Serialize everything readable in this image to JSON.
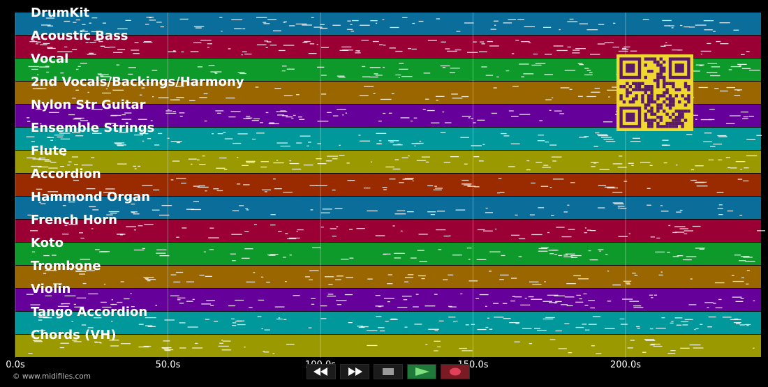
{
  "tracks": [
    {
      "name": "DrumKit",
      "color": "#0b6e9a"
    },
    {
      "name": "Acoustic Bass",
      "color": "#9a0033"
    },
    {
      "name": "Vocal",
      "color": "#0e9a2a"
    },
    {
      "name": "2nd Vocals/Backings/Harmony",
      "color": "#9a6600"
    },
    {
      "name": "Nylon Str Guitar",
      "color": "#66009a"
    },
    {
      "name": "Ensemble Strings",
      "color": "#00989a"
    },
    {
      "name": "Flute",
      "color": "#9a9a00"
    },
    {
      "name": "Accordion",
      "color": "#9a2a00"
    },
    {
      "name": "Hammond Organ",
      "color": "#0b6e9a"
    },
    {
      "name": "French Horn",
      "color": "#9a0033"
    },
    {
      "name": "Koto",
      "color": "#0e9a2a"
    },
    {
      "name": "Trombone",
      "color": "#9a6600"
    },
    {
      "name": "Violin",
      "color": "#66009a"
    },
    {
      "name": "Tango Accordion",
      "color": "#00989a"
    },
    {
      "name": "Chords (VH)",
      "color": "#9a9a00"
    }
  ],
  "timeline": {
    "ticks": [
      {
        "value": 0,
        "label": "0.0s"
      },
      {
        "value": 50,
        "label": "50.0s"
      },
      {
        "value": 100,
        "label": "100.0s"
      },
      {
        "value": 150,
        "label": "150.0s"
      },
      {
        "value": 200,
        "label": "200.0s"
      }
    ],
    "max_seconds": 245
  },
  "transport": {
    "rewind_icon": "rewind-icon",
    "fast_forward_icon": "fast-forward-icon",
    "stop_icon": "stop-icon",
    "play_icon": "play-icon",
    "record_icon": "record-icon"
  },
  "copyright": "© www.midifiles.com",
  "qr": {
    "icon": "qr-code-icon",
    "fg": "#5a1a6a",
    "bg": "#f0d830"
  }
}
